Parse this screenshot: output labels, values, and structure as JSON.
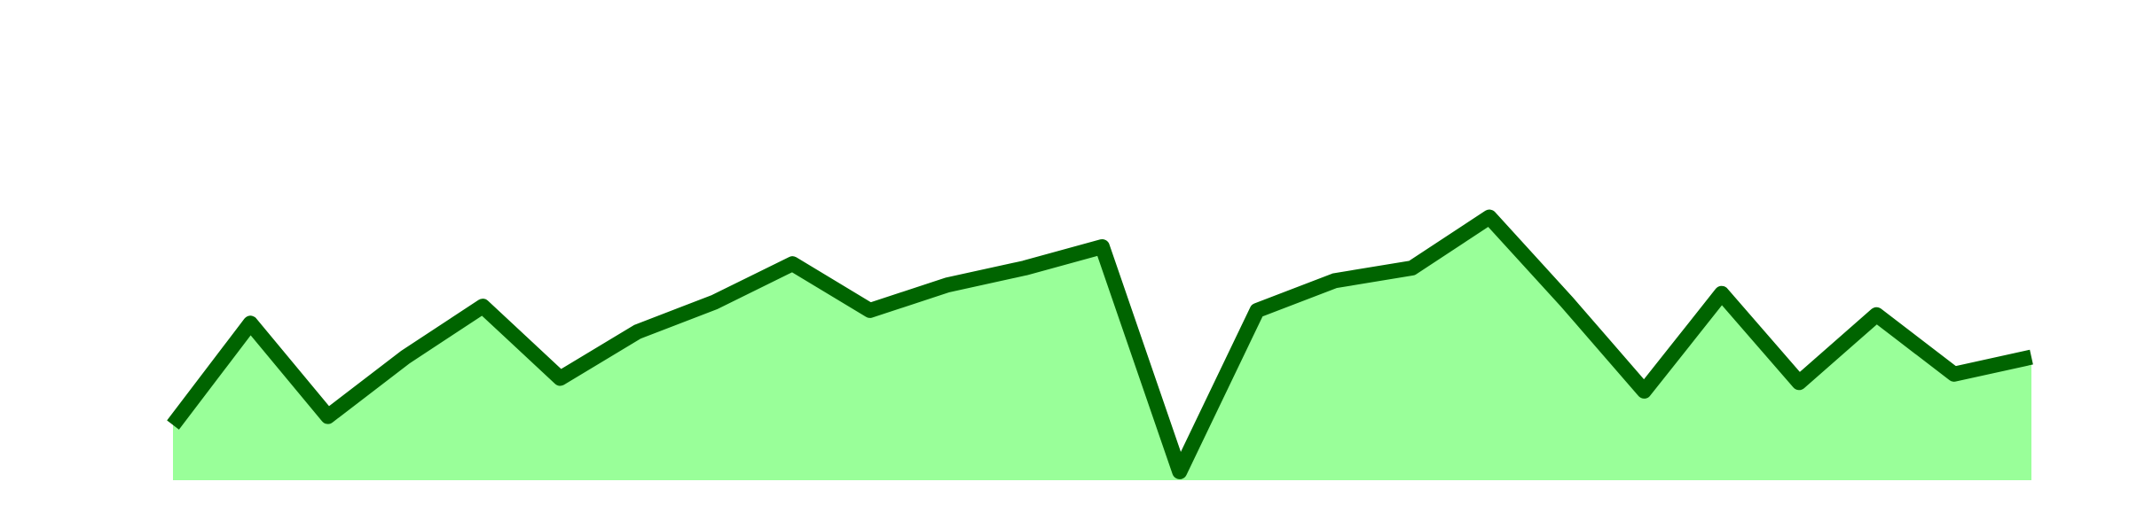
{
  "colors": {
    "area_fill": "#99ff99",
    "line_stroke": "#006400",
    "background": "#ffffff"
  },
  "chart_data": {
    "type": "area",
    "title": "",
    "xlabel": "",
    "ylabel": "",
    "grid": false,
    "legend": "none",
    "x": [
      0,
      1,
      2,
      3,
      4,
      5,
      6,
      7,
      8,
      9,
      10,
      11,
      12,
      13,
      14,
      15,
      16,
      17,
      18,
      19,
      20,
      21,
      22,
      23,
      24
    ],
    "xlim": [
      0,
      24
    ],
    "ylim": [
      0,
      100
    ],
    "series": [
      {
        "values": [
          13,
          37,
          15,
          29,
          41,
          24,
          35,
          42,
          51,
          40,
          46,
          50,
          55,
          2,
          40,
          47,
          50,
          62,
          42,
          21,
          44,
          23,
          39,
          25,
          29
        ]
      }
    ]
  }
}
